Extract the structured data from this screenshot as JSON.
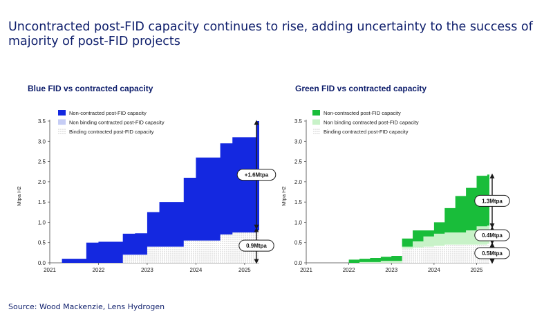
{
  "header": {
    "title": "Uncontracted post-FID capacity continues to rise, adding uncertainty to the success of majority of post-FID projects"
  },
  "footer": {
    "source": "Source: Wood Mackenzie, Lens Hydrogen"
  },
  "chart_data": [
    {
      "type": "area",
      "title": "Blue FID vs contracted capacity",
      "ylabel": "Mtpa H2",
      "xlabel": "",
      "ylim": [
        0,
        3.5
      ],
      "xlim": [
        2021,
        2025.3
      ],
      "yticks": [
        "0.0",
        "0.5",
        "1.0",
        "1.5",
        "2.0",
        "2.5",
        "3.0",
        "3.5"
      ],
      "xticks": [
        "2021",
        "2022",
        "2023",
        "2024",
        "2025"
      ],
      "colors": {
        "non_contracted": "#1428e0",
        "non_binding": "#c6cdf5",
        "binding": "#9a9a9a"
      },
      "legend": [
        "Non-contracted post-FID capacity",
        "Non binding contracted post-FID capacity",
        "Binding contracted post-FID capacity"
      ],
      "x": [
        2021.0,
        2021.25,
        2021.5,
        2021.75,
        2022.0,
        2022.25,
        2022.5,
        2022.75,
        2023.0,
        2023.25,
        2023.5,
        2023.75,
        2024.0,
        2024.25,
        2024.5,
        2024.75,
        2025.0,
        2025.25
      ],
      "series": [
        {
          "name": "Binding contracted post-FID capacity",
          "values": [
            0,
            0,
            0,
            0,
            0,
            0,
            0.2,
            0.2,
            0.4,
            0.4,
            0.4,
            0.55,
            0.55,
            0.55,
            0.7,
            0.75,
            0.75,
            0.8
          ]
        },
        {
          "name": "Non binding contracted post-FID capacity",
          "values": [
            0,
            0,
            0,
            0,
            0,
            0,
            0,
            0,
            0,
            0,
            0,
            0,
            0,
            0,
            0,
            0,
            0,
            0
          ]
        },
        {
          "name": "Non-contracted post-FID capacity",
          "values": [
            0,
            0.1,
            0.1,
            0.5,
            0.52,
            0.52,
            0.52,
            0.53,
            0.85,
            1.1,
            1.1,
            1.55,
            2.05,
            2.05,
            2.25,
            2.35,
            2.35,
            2.7
          ]
        }
      ],
      "annotations": [
        {
          "label": "+1.6Mtpa",
          "from": 0.85,
          "to": 3.5
        },
        {
          "label": "0.9Mtpa",
          "from": 0,
          "to": 0.85
        }
      ]
    },
    {
      "type": "area",
      "title": "Green FID vs contracted capacity",
      "ylabel": "Mtpa H2",
      "xlabel": "",
      "ylim": [
        0,
        3.5
      ],
      "xlim": [
        2021,
        2025.3
      ],
      "yticks": [
        "0.0",
        "0.5",
        "1.0",
        "1.5",
        "2.0",
        "2.5",
        "3.0",
        "3.5"
      ],
      "xticks": [
        "2021",
        "2022",
        "2023",
        "2024",
        "2025"
      ],
      "colors": {
        "non_contracted": "#19bd3a",
        "non_binding": "#c8f2c8",
        "binding": "#9a9a9a"
      },
      "legend": [
        "Non-contracted post-FID capacity",
        "Non binding contracted post-FID capacity",
        "Binding contracted post-FID capacity"
      ],
      "x": [
        2021.0,
        2021.25,
        2021.5,
        2021.75,
        2022.0,
        2022.25,
        2022.5,
        2022.75,
        2023.0,
        2023.25,
        2023.5,
        2023.75,
        2024.0,
        2024.25,
        2024.5,
        2024.75,
        2025.0,
        2025.25
      ],
      "series": [
        {
          "name": "Binding contracted post-FID capacity",
          "values": [
            0,
            0,
            0,
            0,
            0,
            0,
            0,
            0,
            0,
            0.35,
            0.38,
            0.4,
            0.42,
            0.45,
            0.45,
            0.45,
            0.45,
            0.47
          ]
        },
        {
          "name": "Non binding contracted post-FID capacity",
          "values": [
            0,
            0,
            0,
            0,
            0,
            0.02,
            0.02,
            0.05,
            0.05,
            0.05,
            0.15,
            0.25,
            0.3,
            0.3,
            0.3,
            0.35,
            0.45,
            0.45
          ]
        },
        {
          "name": "Non-contracted post-FID capacity",
          "values": [
            0,
            0,
            0,
            0,
            0.08,
            0.08,
            0.1,
            0.1,
            0.12,
            0.2,
            0.27,
            0.15,
            0.28,
            0.6,
            0.9,
            1.05,
            1.25,
            1.26
          ]
        }
      ],
      "annotations": [
        {
          "label": "1.3Mtpa",
          "from": 0.88,
          "to": 2.18
        },
        {
          "label": "0.4Mtpa",
          "from": 0.48,
          "to": 0.88
        },
        {
          "label": "0.5Mtpa",
          "from": 0,
          "to": 0.48
        }
      ]
    }
  ]
}
